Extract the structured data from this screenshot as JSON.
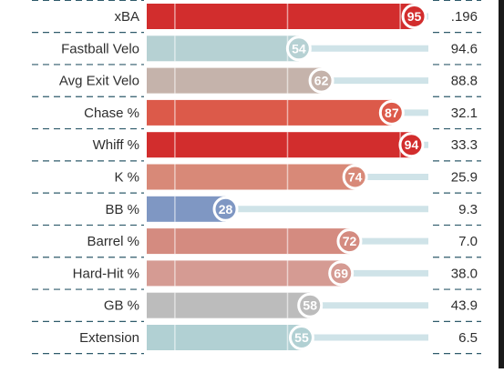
{
  "chart_data": {
    "type": "bar",
    "orientation": "horizontal",
    "xlim": [
      0,
      100
    ],
    "grid": true,
    "rows": [
      {
        "label": "xBA",
        "percentile": 95,
        "value": ".196",
        "color": "#d22d2d"
      },
      {
        "label": "Fastball Velo",
        "percentile": 54,
        "value": "94.6",
        "color": "#b6d1d3"
      },
      {
        "label": "Avg Exit Velo",
        "percentile": 62,
        "value": "88.8",
        "color": "#c5b3ab"
      },
      {
        "label": "Chase %",
        "percentile": 87,
        "value": "32.1",
        "color": "#dc5a4a"
      },
      {
        "label": "Whiff %",
        "percentile": 94,
        "value": "33.3",
        "color": "#d22d2d"
      },
      {
        "label": "K %",
        "percentile": 74,
        "value": "25.9",
        "color": "#d88978"
      },
      {
        "label": "BB %",
        "percentile": 28,
        "value": "9.3",
        "color": "#7f97c3"
      },
      {
        "label": "Barrel %",
        "percentile": 72,
        "value": "7.0",
        "color": "#d48b80"
      },
      {
        "label": "Hard-Hit %",
        "percentile": 69,
        "value": "38.0",
        "color": "#d59b93"
      },
      {
        "label": "GB %",
        "percentile": 58,
        "value": "43.9",
        "color": "#bcbcbc"
      },
      {
        "label": "Extension",
        "percentile": 55,
        "value": "6.5",
        "color": "#b1d0d3"
      }
    ]
  }
}
